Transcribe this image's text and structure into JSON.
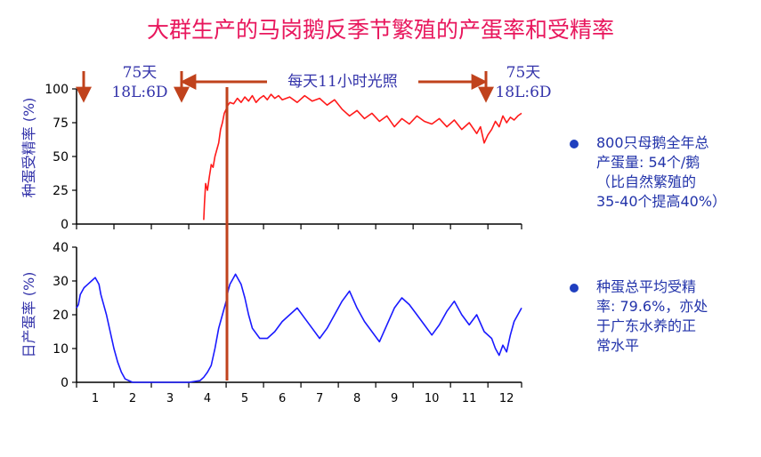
{
  "title": "大群生产的马岗鹅反季节繁殖的产蛋率和受精率",
  "annotations": {
    "left_days": "75天",
    "left_light": "18L:6D",
    "middle": "每天11小时光照",
    "right_days": "75天",
    "right_light": "18L:6D"
  },
  "bullets": [
    {
      "lines": [
        "800只母鹅全年总",
        "产蛋量: 54个/鹅",
        "（比自然繁殖的",
        "35-40个提高40%）"
      ]
    },
    {
      "lines": [
        "种蛋总平均受精",
        "率: 79.6%，亦处",
        "于广东水养的正",
        "常水平"
      ]
    }
  ],
  "colors": {
    "title": "#e8175d",
    "fertility": "#ff1a1a",
    "laying": "#1a1aff",
    "arrows": "#c0421c",
    "text": "#3333aa"
  },
  "chart_data": [
    {
      "type": "line",
      "ylabel": "种蛋受精率 (%)",
      "yticks": [
        "0",
        "25",
        "50",
        "75",
        "100"
      ],
      "ylim": [
        0,
        100
      ],
      "xlim": [
        0.5,
        12.4
      ],
      "series": [
        {
          "color": "#ff1a1a",
          "x": [
            3.9,
            3.92,
            3.95,
            3.98,
            4.0,
            4.05,
            4.08,
            4.1,
            4.15,
            4.2,
            4.25,
            4.3,
            4.35,
            4.4,
            4.45,
            4.5,
            4.55,
            4.6,
            4.7,
            4.8,
            4.9,
            5.0,
            5.1,
            5.2,
            5.3,
            5.4,
            5.5,
            5.6,
            5.7,
            5.8,
            5.9,
            6.0,
            6.2,
            6.4,
            6.6,
            6.8,
            7.0,
            7.2,
            7.4,
            7.6,
            7.8,
            8.0,
            8.2,
            8.4,
            8.6,
            8.8,
            9.0,
            9.2,
            9.4,
            9.6,
            9.8,
            10.0,
            10.2,
            10.4,
            10.6,
            10.8,
            11.0,
            11.1,
            11.2,
            11.3,
            11.4,
            11.5,
            11.6,
            11.7,
            11.8,
            11.9,
            12.0,
            12.1,
            12.2,
            12.3,
            12.4
          ],
          "y": [
            3,
            15,
            30,
            27,
            25,
            35,
            40,
            44,
            42,
            50,
            55,
            60,
            70,
            75,
            82,
            85,
            88,
            90,
            89,
            93,
            90,
            94,
            91,
            95,
            90,
            93,
            95,
            92,
            96,
            93,
            95,
            92,
            94,
            90,
            95,
            91,
            93,
            88,
            92,
            85,
            80,
            84,
            78,
            82,
            76,
            80,
            72,
            78,
            74,
            80,
            76,
            74,
            78,
            72,
            77,
            70,
            75,
            71,
            67,
            72,
            60,
            66,
            70,
            76,
            72,
            80,
            75,
            79,
            77,
            80,
            82
          ]
        }
      ]
    },
    {
      "type": "line",
      "ylabel": "日产蛋率 (%)",
      "yticks": [
        "0",
        "10",
        "20",
        "30",
        "40"
      ],
      "ylim": [
        0,
        40
      ],
      "xlim": [
        0.5,
        12.4
      ],
      "xtick_labels": [
        "1",
        "2",
        "3",
        "4",
        "5",
        "6",
        "7",
        "8",
        "9",
        "10",
        "11",
        "12"
      ],
      "series": [
        {
          "color": "#1a1aff",
          "x": [
            0.5,
            0.55,
            0.6,
            0.7,
            0.8,
            0.9,
            1.0,
            1.05,
            1.1,
            1.15,
            1.2,
            1.3,
            1.4,
            1.5,
            1.6,
            1.7,
            1.8,
            1.9,
            2.0,
            2.5,
            3.0,
            3.5,
            3.8,
            3.9,
            4.0,
            4.1,
            4.2,
            4.3,
            4.4,
            4.5,
            4.55,
            4.6,
            4.7,
            4.75,
            4.8,
            4.9,
            5.0,
            5.1,
            5.2,
            5.4,
            5.6,
            5.8,
            6.0,
            6.2,
            6.4,
            6.6,
            6.8,
            7.0,
            7.2,
            7.4,
            7.6,
            7.8,
            8.0,
            8.2,
            8.4,
            8.6,
            8.8,
            9.0,
            9.2,
            9.4,
            9.6,
            9.8,
            10.0,
            10.2,
            10.4,
            10.6,
            10.8,
            11.0,
            11.2,
            11.4,
            11.6,
            11.7,
            11.8,
            11.9,
            12.0,
            12.1,
            12.2,
            12.3,
            12.4
          ],
          "y": [
            22,
            23,
            26,
            28,
            29,
            30,
            31,
            30,
            29,
            26,
            24,
            20,
            15,
            10,
            6,
            3,
            1,
            0.5,
            0,
            0,
            0,
            0,
            0.5,
            1.5,
            3,
            5,
            10,
            16,
            20,
            24,
            27,
            29,
            31,
            32,
            31,
            29,
            25,
            20,
            16,
            13,
            13,
            15,
            18,
            20,
            22,
            19,
            16,
            13,
            16,
            20,
            24,
            27,
            22,
            18,
            15,
            12,
            17,
            22,
            25,
            23,
            20,
            17,
            14,
            17,
            21,
            24,
            20,
            17,
            20,
            15,
            13,
            10,
            8,
            11,
            9,
            14,
            18,
            20,
            22
          ]
        }
      ]
    }
  ]
}
